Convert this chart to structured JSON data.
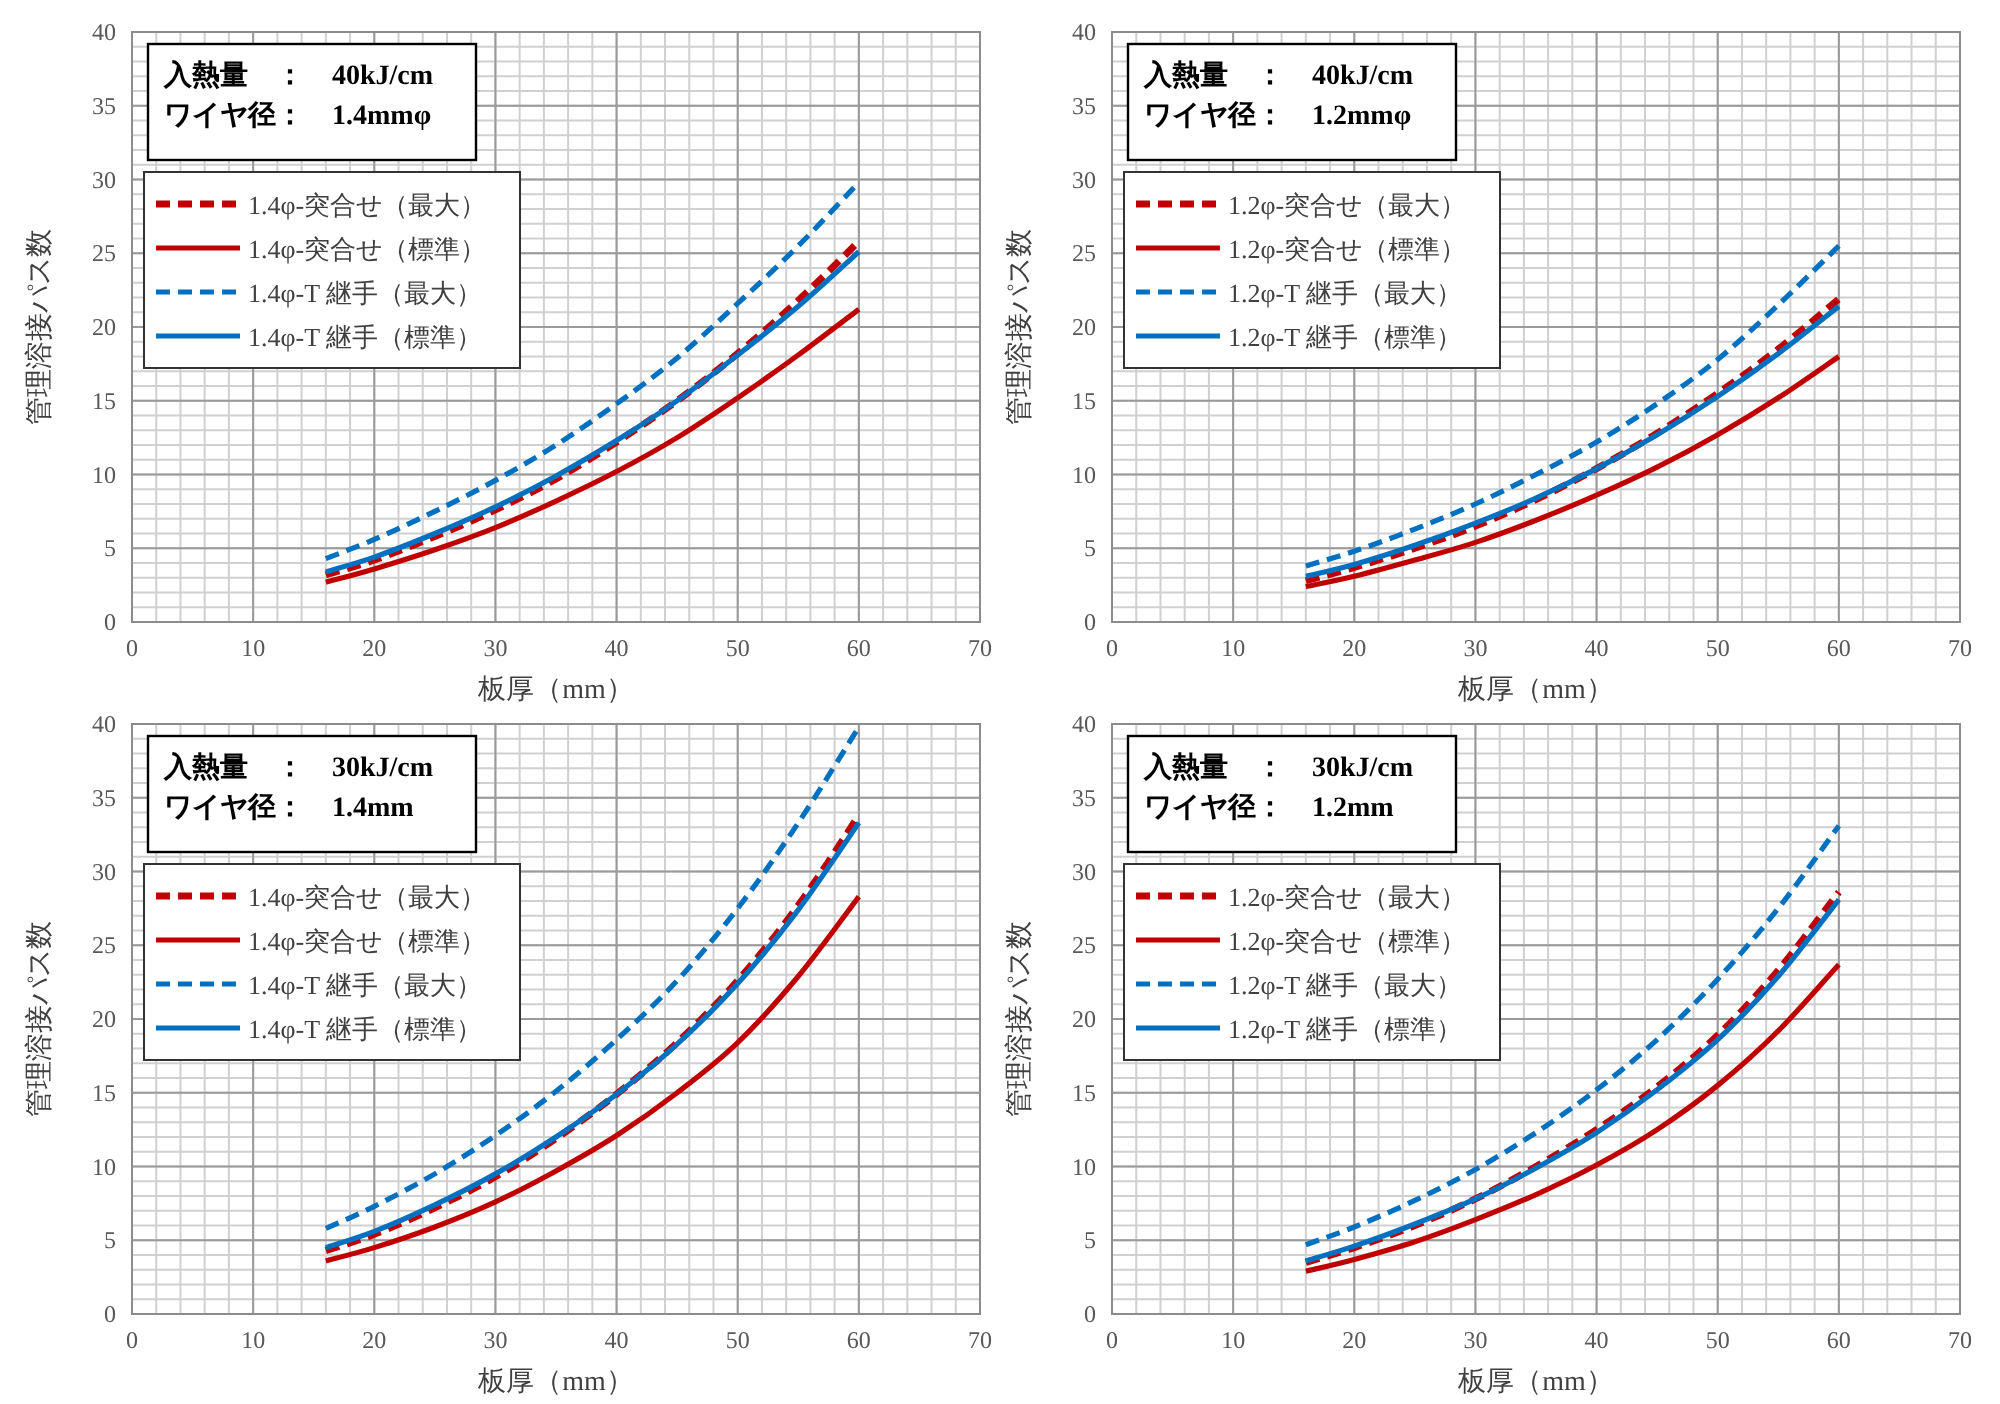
{
  "chart_data": [
    {
      "type": "line",
      "xlabel": "板厚（mm）",
      "ylabel": "管理溶接パス数",
      "annotations": [
        "入熱量　：　40kJ/cm",
        "ワイヤ径：　1.4mmφ"
      ],
      "xlim": [
        0,
        70
      ],
      "ylim": [
        0,
        40
      ],
      "xticks": [
        0,
        10,
        20,
        30,
        40,
        50,
        60,
        70
      ],
      "yticks": [
        0,
        5,
        10,
        15,
        20,
        25,
        30,
        35,
        40
      ],
      "grid": true,
      "legend": "top left",
      "x": [
        16,
        20,
        25,
        30,
        35,
        40,
        45,
        50,
        55,
        60
      ],
      "series": [
        {
          "name": "1.4φ-突合せ（最大）",
          "color": "#c00000",
          "line_style": "dashed",
          "values": [
            3.2,
            4.2,
            5.8,
            7.6,
            9.7,
            12.2,
            15.0,
            18.2,
            21.8,
            25.8
          ]
        },
        {
          "name": "1.4φ-突合せ（標準）",
          "color": "#c00000",
          "line_style": "solid",
          "values": [
            2.7,
            3.6,
            4.9,
            6.4,
            8.2,
            10.2,
            12.5,
            15.2,
            18.1,
            21.2
          ]
        },
        {
          "name": "1.4φ-T 継手（最大）",
          "color": "#0070c0",
          "line_style": "dashed",
          "values": [
            4.3,
            5.6,
            7.5,
            9.6,
            12.0,
            14.8,
            17.9,
            21.6,
            25.5,
            29.8
          ]
        },
        {
          "name": "1.4φ-T 継手（標準）",
          "color": "#0070c0",
          "line_style": "solid",
          "values": [
            3.4,
            4.4,
            6.0,
            7.8,
            9.9,
            12.3,
            15.0,
            18.1,
            21.4,
            25.1
          ]
        }
      ]
    },
    {
      "type": "line",
      "xlabel": "板厚（mm）",
      "ylabel": "管理溶接パス数",
      "annotations": [
        "入熱量　：　40kJ/cm",
        "ワイヤ径：　1.2mmφ"
      ],
      "xlim": [
        0,
        70
      ],
      "ylim": [
        0,
        40
      ],
      "xticks": [
        0,
        10,
        20,
        30,
        40,
        50,
        60,
        70
      ],
      "yticks": [
        0,
        5,
        10,
        15,
        20,
        25,
        30,
        35,
        40
      ],
      "grid": true,
      "legend": "top left",
      "x": [
        16,
        20,
        25,
        30,
        35,
        40,
        45,
        50,
        55,
        60
      ],
      "series": [
        {
          "name": "1.2φ-突合せ（最大）",
          "color": "#c00000",
          "line_style": "dashed",
          "values": [
            2.8,
            3.7,
            5.0,
            6.5,
            8.3,
            10.4,
            12.8,
            15.5,
            18.5,
            21.9
          ]
        },
        {
          "name": "1.2φ-突合せ（標準）",
          "color": "#c00000",
          "line_style": "solid",
          "values": [
            2.4,
            3.1,
            4.2,
            5.4,
            6.9,
            8.6,
            10.5,
            12.7,
            15.2,
            18.0
          ]
        },
        {
          "name": "1.2φ-T 継手（最大）",
          "color": "#0070c0",
          "line_style": "dashed",
          "values": [
            3.8,
            4.8,
            6.3,
            8.0,
            10.0,
            12.2,
            14.8,
            17.8,
            21.5,
            25.5
          ]
        },
        {
          "name": "1.2φ-T 継手（標準）",
          "color": "#0070c0",
          "line_style": "solid",
          "values": [
            3.1,
            3.9,
            5.2,
            6.7,
            8.4,
            10.4,
            12.7,
            15.3,
            18.2,
            21.4
          ]
        }
      ]
    },
    {
      "type": "line",
      "xlabel": "板厚（mm）",
      "ylabel": "管理溶接パス数",
      "annotations": [
        "入熱量　：　30kJ/cm",
        "ワイヤ径：　1.4mm"
      ],
      "xlim": [
        0,
        70
      ],
      "ylim": [
        0,
        40
      ],
      "xticks": [
        0,
        10,
        20,
        30,
        40,
        50,
        60,
        70
      ],
      "yticks": [
        0,
        5,
        10,
        15,
        20,
        25,
        30,
        35,
        40
      ],
      "grid": true,
      "legend": "top left",
      "x": [
        16,
        20,
        25,
        30,
        35,
        40,
        45,
        50,
        55,
        60
      ],
      "series": [
        {
          "name": "1.4φ-突合せ（最大）",
          "color": "#c00000",
          "line_style": "dashed",
          "values": [
            4.3,
            5.4,
            7.2,
            9.3,
            11.9,
            14.9,
            18.4,
            22.6,
            27.7,
            33.8
          ]
        },
        {
          "name": "1.4φ-突合せ（標準）",
          "color": "#c00000",
          "line_style": "solid",
          "values": [
            3.6,
            4.5,
            5.9,
            7.6,
            9.7,
            12.1,
            15.0,
            18.4,
            22.9,
            28.3
          ]
        },
        {
          "name": "1.4φ-T 継手（最大）",
          "color": "#0070c0",
          "line_style": "dashed",
          "values": [
            5.8,
            7.3,
            9.5,
            12.1,
            15.1,
            18.6,
            22.6,
            27.5,
            33.3,
            39.8
          ]
        },
        {
          "name": "1.4φ-T 継手（標準）",
          "color": "#0070c0",
          "line_style": "solid",
          "values": [
            4.5,
            5.6,
            7.4,
            9.5,
            12.0,
            14.9,
            18.3,
            22.4,
            27.4,
            33.3
          ]
        }
      ]
    },
    {
      "type": "line",
      "xlabel": "板厚（mm）",
      "ylabel": "管理溶接パス数",
      "annotations": [
        "入熱量　：　30kJ/cm",
        "ワイヤ径：　1.2mm"
      ],
      "xlim": [
        0,
        70
      ],
      "ylim": [
        0,
        40
      ],
      "xticks": [
        0,
        10,
        20,
        30,
        40,
        50,
        60,
        70
      ],
      "yticks": [
        0,
        5,
        10,
        15,
        20,
        25,
        30,
        35,
        40
      ],
      "grid": true,
      "legend": "top left",
      "x": [
        16,
        20,
        25,
        30,
        35,
        40,
        45,
        50,
        55,
        60
      ],
      "series": [
        {
          "name": "1.2φ-突合せ（最大）",
          "color": "#c00000",
          "line_style": "dashed",
          "values": [
            3.5,
            4.5,
            6.0,
            7.8,
            10.0,
            12.5,
            15.4,
            18.9,
            23.3,
            28.6
          ]
        },
        {
          "name": "1.2φ-突合せ（標準）",
          "color": "#c00000",
          "line_style": "solid",
          "values": [
            2.9,
            3.7,
            4.9,
            6.4,
            8.1,
            10.1,
            12.5,
            15.5,
            19.2,
            23.7
          ]
        },
        {
          "name": "1.2φ-T 継手（最大）",
          "color": "#0070c0",
          "line_style": "dashed",
          "values": [
            4.7,
            5.9,
            7.7,
            9.8,
            12.3,
            15.2,
            18.6,
            22.7,
            27.5,
            33.1
          ]
        },
        {
          "name": "1.2φ-T 継手（標準）",
          "color": "#0070c0",
          "line_style": "solid",
          "values": [
            3.6,
            4.6,
            6.1,
            7.8,
            9.9,
            12.3,
            15.2,
            18.6,
            22.9,
            28.1
          ]
        }
      ]
    }
  ]
}
